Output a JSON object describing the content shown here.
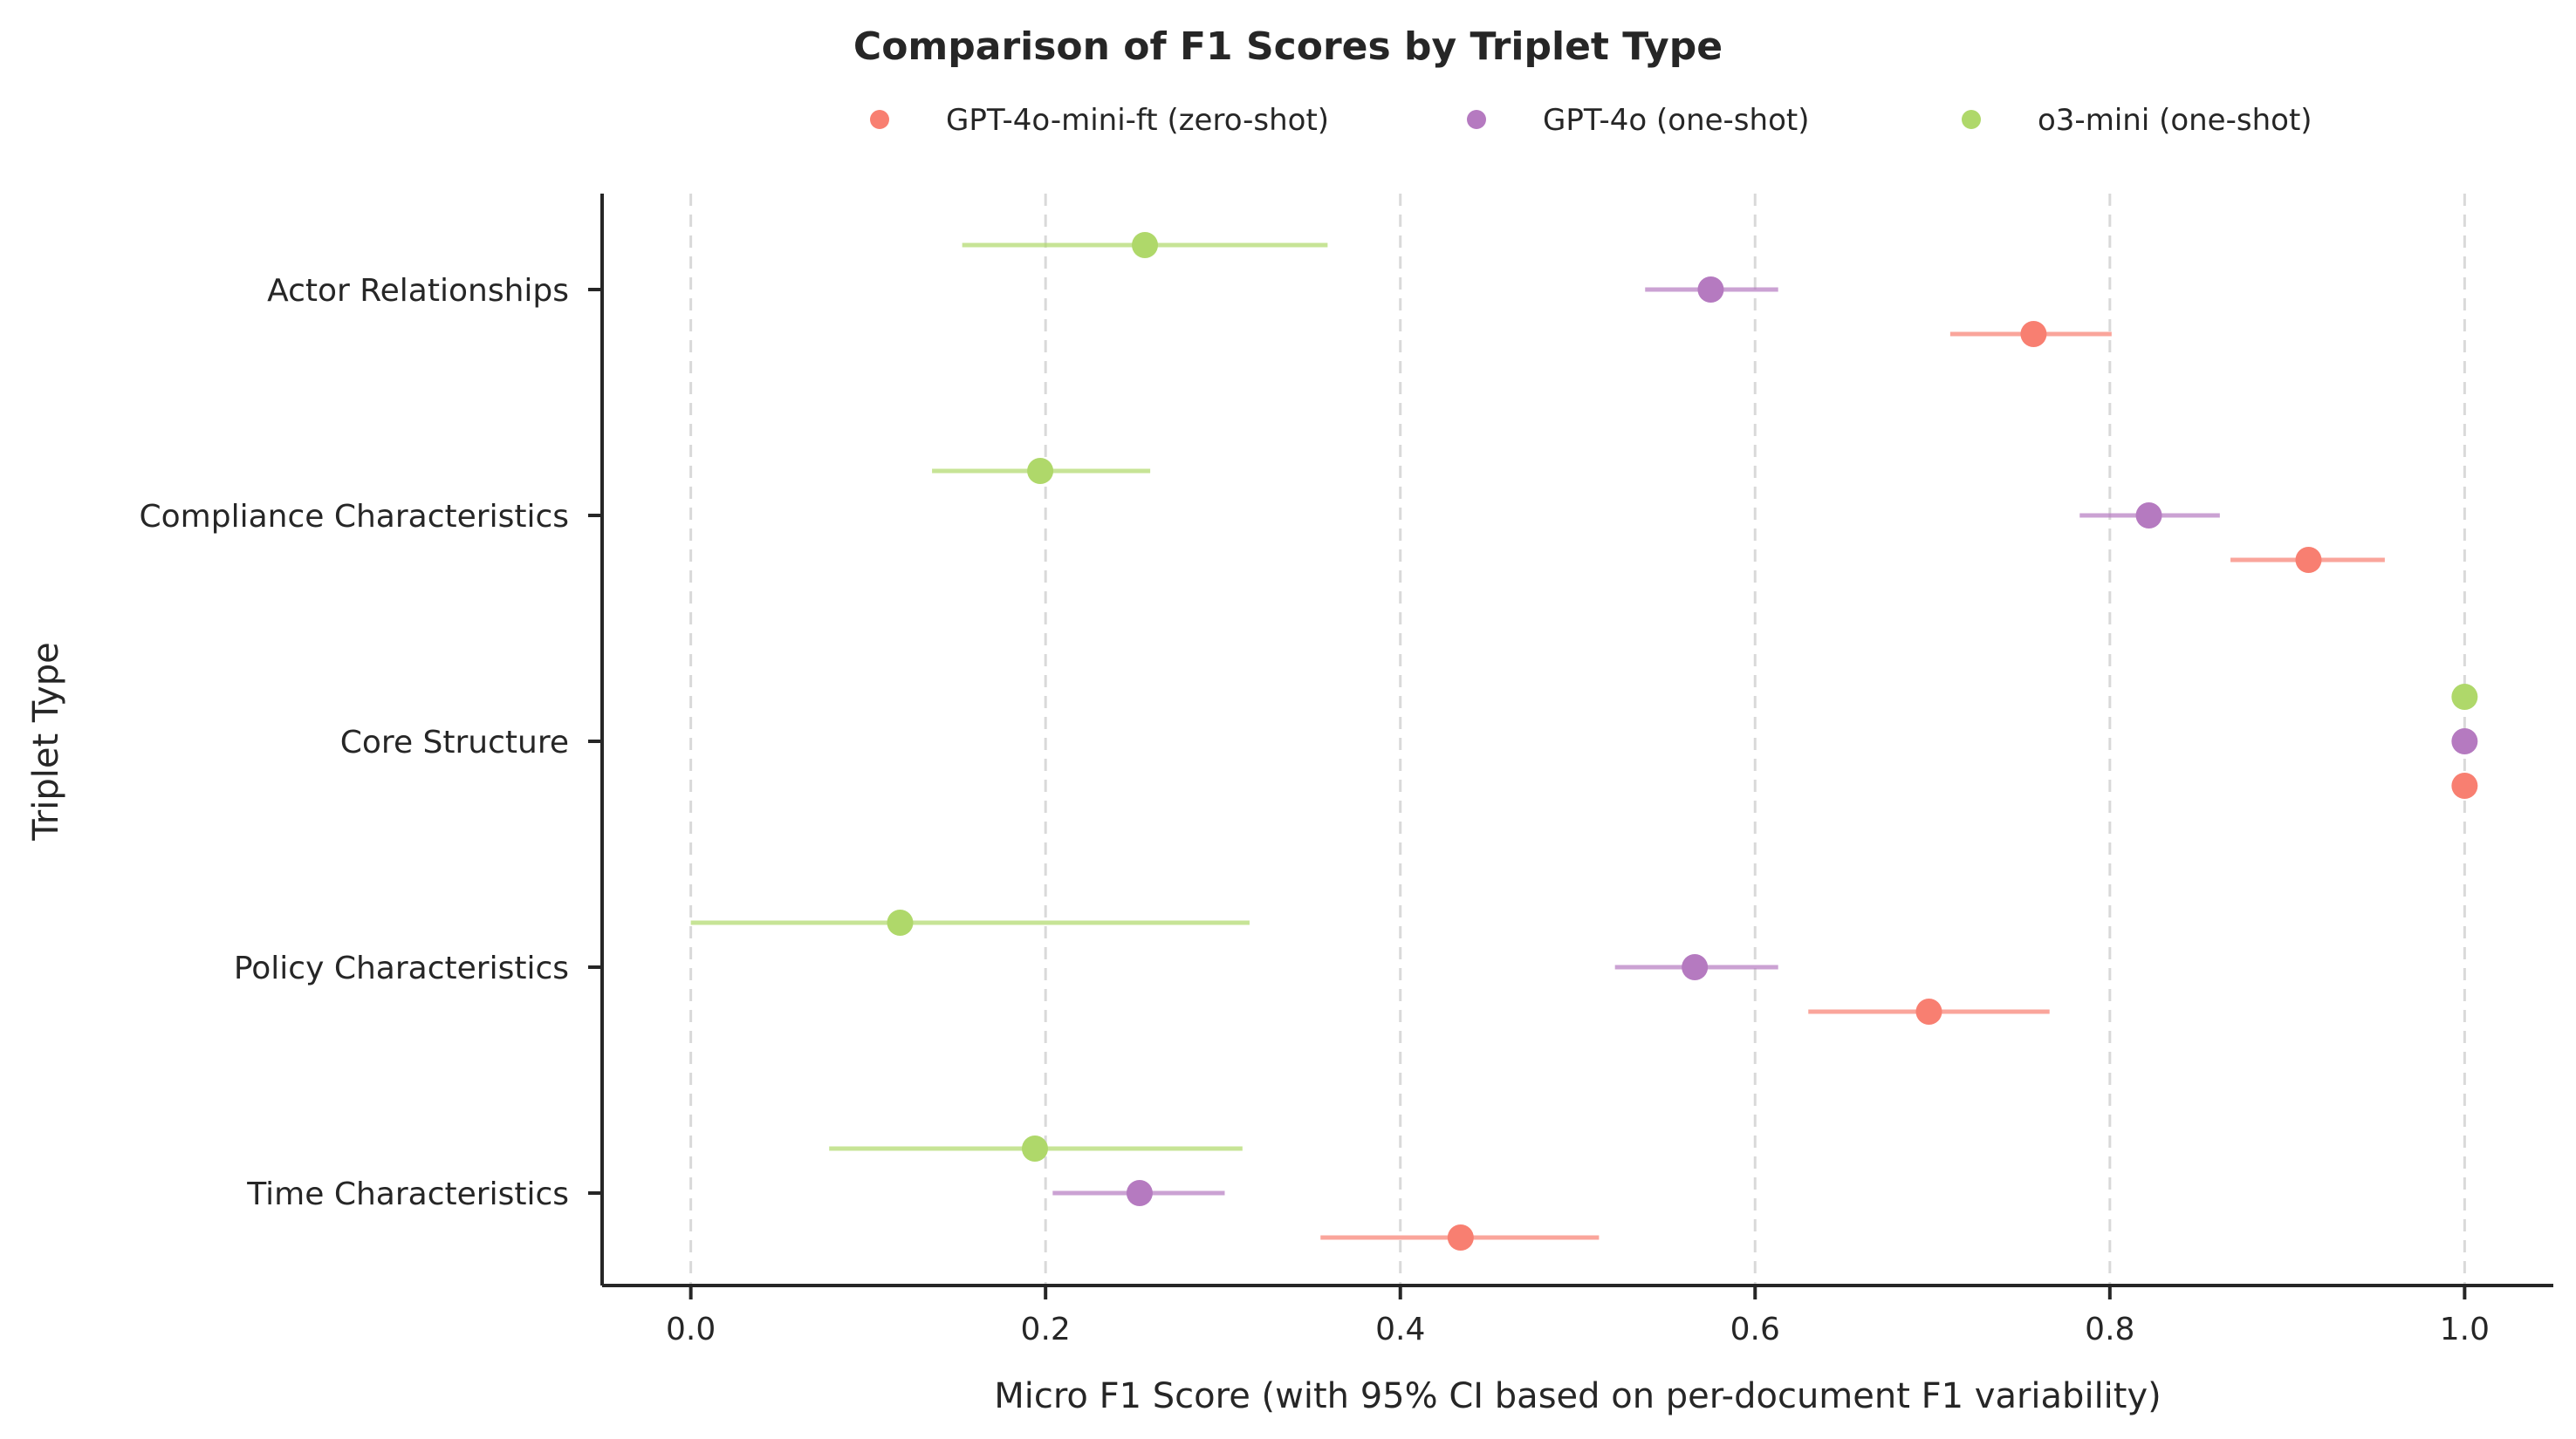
{
  "chart_data": {
    "type": "scatter",
    "title": "Comparison of F1 Scores by Triplet Type",
    "xlabel": "Micro F1 Score (with 95% CI based on per-document F1 variability)",
    "ylabel": "Triplet Type",
    "xlim": [
      -0.05,
      1.05
    ],
    "xticks": [
      "0.0",
      "0.2",
      "0.4",
      "0.6",
      "0.8",
      "1.0"
    ],
    "grid": "x-dashed",
    "legend_position": "top-center",
    "categories": [
      "Actor Relationships",
      "Compliance Characteristics",
      "Core Structure",
      "Policy Characteristics",
      "Time Characteristics"
    ],
    "series": [
      {
        "name": "GPT-4o-mini-ft (zero-shot)",
        "color": "#f87f71",
        "values": [
          0.757,
          0.912,
          1.0,
          0.698,
          0.434
        ],
        "ci_low": [
          0.71,
          0.868,
          1.0,
          0.63,
          0.355
        ],
        "ci_high": [
          0.801,
          0.955,
          1.0,
          0.766,
          0.512
        ]
      },
      {
        "name": "GPT-4o (one-shot)",
        "color": "#b57ac0",
        "values": [
          0.575,
          0.822,
          1.0,
          0.566,
          0.253
        ],
        "ci_low": [
          0.538,
          0.783,
          1.0,
          0.521,
          0.204
        ],
        "ci_high": [
          0.613,
          0.862,
          1.0,
          0.613,
          0.301
        ]
      },
      {
        "name": "o3-mini (one-shot)",
        "color": "#afd86a",
        "values": [
          0.256,
          0.197,
          1.0,
          0.118,
          0.194
        ],
        "ci_low": [
          0.153,
          0.136,
          1.0,
          0.0,
          0.078
        ],
        "ci_high": [
          0.359,
          0.259,
          1.0,
          0.315,
          0.311
        ]
      }
    ]
  }
}
